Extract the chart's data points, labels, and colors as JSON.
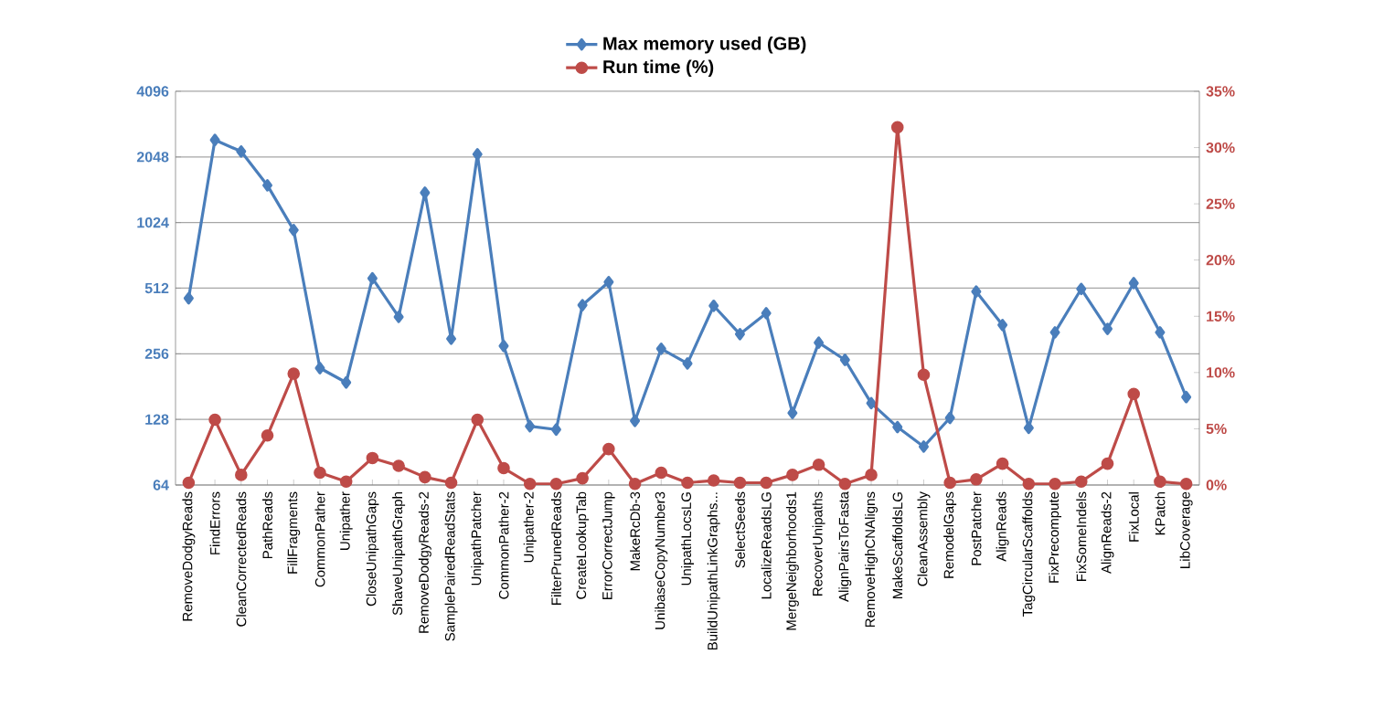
{
  "chart_data": {
    "type": "line",
    "categories": [
      "RemoveDodgyReads",
      "FindErrors",
      "CleanCorrectedReads",
      "PathReads",
      "FillFragments",
      "CommonPather",
      "Unipather",
      "CloseUnipathGaps",
      "ShaveUnipathGraph",
      "RemoveDodgyReads-2",
      "SamplePairedReadStats",
      "UnipathPatcher",
      "CommonPather-2",
      "Unipather-2",
      "FilterPrunedReads",
      "CreateLookupTab",
      "ErrorCorrectJump",
      "MakeRcDb-3",
      "UnibaseCopyNumber3",
      "UnipathLocsLG",
      "BuildUnipathLinkGraphs...",
      "SelectSeeds",
      "LocalizeReadsLG",
      "MergeNeighborhoods1",
      "RecoverUnipaths",
      "AlignPairsToFasta",
      "RemoveHighCNAligns",
      "MakeScaffoldsLG",
      "CleanAssembly",
      "RemodelGaps",
      "PostPatcher",
      "AlignReads",
      "TagCircularScaffolds",
      "FixPrecompute",
      "FixSomeIndels",
      "AlignReads-2",
      "FixLocal",
      "KPatch",
      "LibCoverage"
    ],
    "series": [
      {
        "name": "Max memory used (GB)",
        "color": "#4a7ebb",
        "marker": "diamond",
        "values": [
          460,
          2450,
          2170,
          1517,
          946,
          220,
          189,
          568,
          378,
          1403,
          300,
          2106,
          278,
          119,
          115,
          428,
          546,
          126,
          270,
          231,
          425,
          315,
          393,
          137,
          288,
          240,
          152,
          118,
          96,
          130,
          494,
          347,
          117,
          321,
          508,
          333,
          540,
          321,
          162
        ]
      },
      {
        "name": "Run time (%)",
        "color": "#be4b48",
        "marker": "circle",
        "axis": "y2",
        "values": [
          0.2,
          5.8,
          0.9,
          4.4,
          9.9,
          1.1,
          0.3,
          2.4,
          1.7,
          0.7,
          0.2,
          5.8,
          1.5,
          0.1,
          0.1,
          0.6,
          3.2,
          0.1,
          1.1,
          0.2,
          0.4,
          0.2,
          0.2,
          0.9,
          1.8,
          0.1,
          0.9,
          31.8,
          9.8,
          0.2,
          0.5,
          1.9,
          0.1,
          0.1,
          0.3,
          1.9,
          8.1,
          0.3,
          0.1
        ]
      }
    ],
    "log": "y",
    "ylim": [
      64,
      4096
    ],
    "yticks": [
      64,
      128,
      256,
      512,
      1024,
      2048,
      4096
    ],
    "y2lim": [
      0,
      35
    ],
    "y2ticks": [
      {
        "value": 0,
        "label": "0%"
      },
      {
        "value": 5,
        "label": "5%"
      },
      {
        "value": 10,
        "label": "10%"
      },
      {
        "value": 15,
        "label": "15%"
      },
      {
        "value": 20,
        "label": "20%"
      },
      {
        "value": 25,
        "label": "25%"
      },
      {
        "value": 30,
        "label": "30%"
      },
      {
        "value": 35,
        "label": "35%"
      }
    ],
    "grid": "y",
    "legend": "top",
    "line_style": "solid"
  }
}
